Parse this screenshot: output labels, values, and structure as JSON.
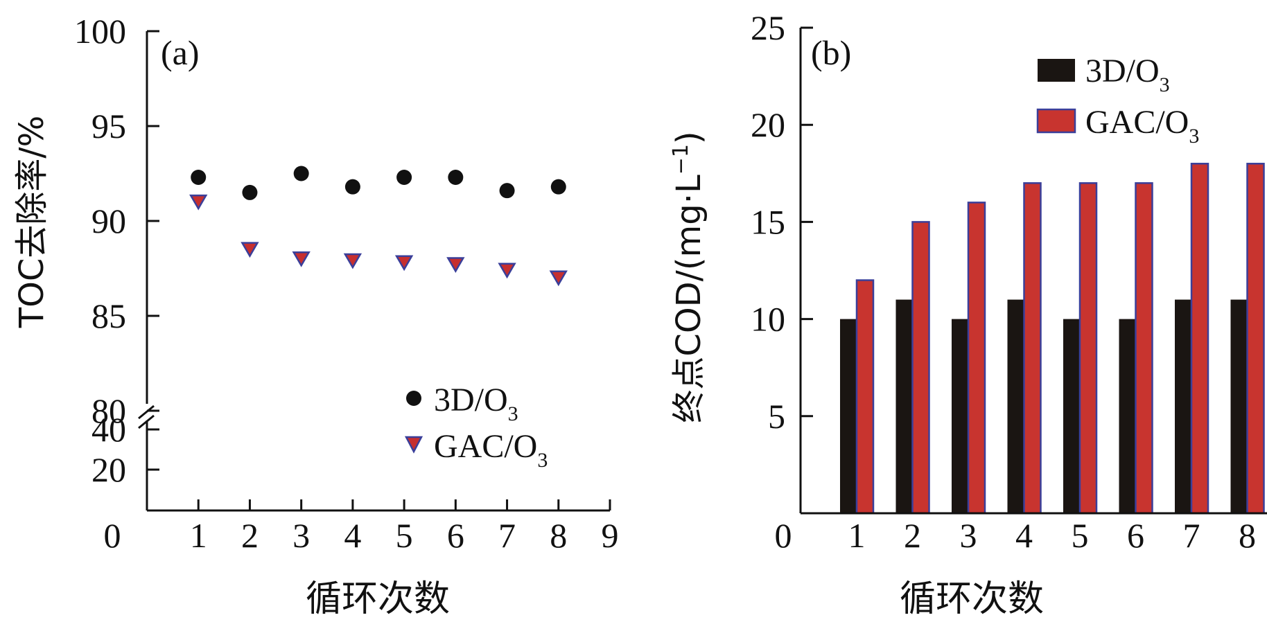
{
  "chart_data": [
    {
      "type": "scatter",
      "panel_label": "(a)",
      "xlabel": "循环次数",
      "ylabel": "TOC去除率/%",
      "x_ticks": [
        "0",
        "1",
        "2",
        "3",
        "4",
        "5",
        "6",
        "7",
        "8",
        "9"
      ],
      "y_ticks_upper": [
        "100",
        "95",
        "90",
        "85",
        "80"
      ],
      "y_ticks_lower": [
        "40",
        "20"
      ],
      "xlim": [
        0,
        9
      ],
      "ylim_upper": [
        80,
        100
      ],
      "ylim_lower": [
        0,
        40
      ],
      "axis_break": true,
      "legend_position": "bottom-right",
      "x": [
        1,
        2,
        3,
        4,
        5,
        6,
        7,
        8
      ],
      "series": [
        {
          "name": "3D/O3",
          "label_main": "3D/O",
          "label_sub": "3",
          "marker": "circle",
          "color": "#111111",
          "values": [
            92.3,
            91.5,
            92.5,
            91.8,
            92.3,
            92.3,
            91.6,
            91.8
          ]
        },
        {
          "name": "GAC/O3",
          "label_main": "GAC/O",
          "label_sub": "3",
          "marker": "triangle-down",
          "color": "#c62f2f",
          "edge": "#3a3f9a",
          "values": [
            91.0,
            88.5,
            88.0,
            87.9,
            87.8,
            87.7,
            87.4,
            87.0
          ]
        }
      ]
    },
    {
      "type": "bar",
      "panel_label": "(b)",
      "xlabel": "循环次数",
      "ylabel_main": "终点COD/(mg·L",
      "ylabel_sup": "−1",
      "ylabel_close": ")",
      "categories": [
        "1",
        "2",
        "3",
        "4",
        "5",
        "6",
        "7",
        "8"
      ],
      "x_ticks": [
        "0",
        "1",
        "2",
        "3",
        "4",
        "5",
        "6",
        "7",
        "8"
      ],
      "y_ticks": [
        "25",
        "20",
        "15",
        "10",
        "5"
      ],
      "ylim": [
        0,
        25
      ],
      "legend_position": "top-right",
      "series": [
        {
          "name": "3D/O3",
          "label_main": "3D/O",
          "label_sub": "3",
          "color": "#1a1512",
          "values": [
            10,
            11,
            10,
            11,
            10,
            10,
            11,
            11
          ]
        },
        {
          "name": "GAC/O3",
          "label_main": "GAC/O",
          "label_sub": "3",
          "color": "#c8342f",
          "edge": "#3a3f9a",
          "values": [
            12,
            15,
            16,
            17,
            17,
            17,
            18,
            18
          ]
        }
      ]
    }
  ]
}
